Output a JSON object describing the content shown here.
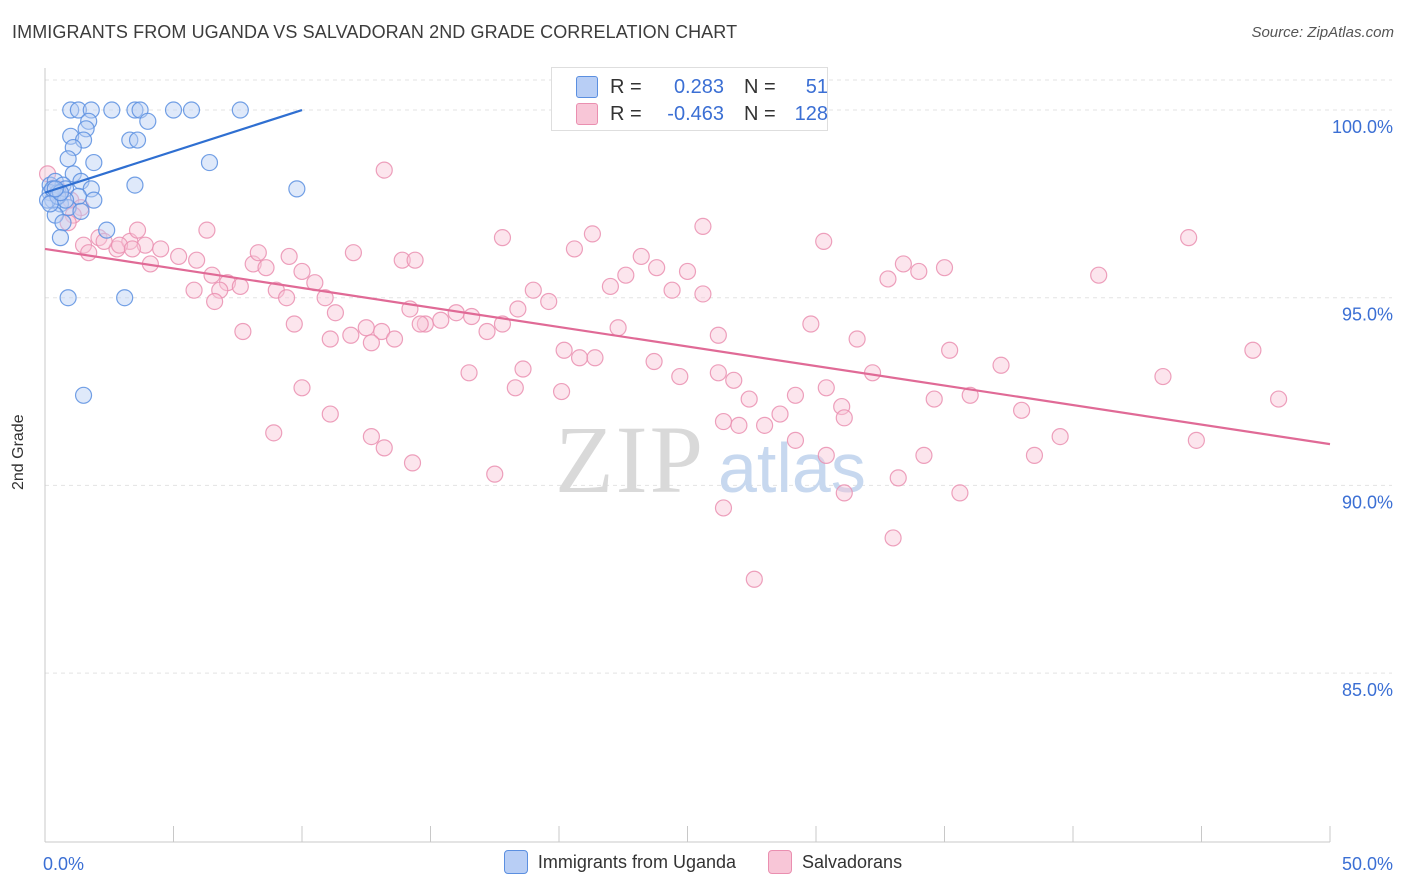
{
  "header": {
    "title": "IMMIGRANTS FROM UGANDA VS SALVADORAN 2ND GRADE CORRELATION CHART",
    "source": "Source: ZipAtlas.com"
  },
  "watermark": {
    "part1": "ZIP",
    "part2": "atlas"
  },
  "colors": {
    "blue": "#5b8fe0",
    "blue_fill": "#b8cef5",
    "blue_line": "#2f6fd1",
    "pink": "#ea8fb0",
    "pink_fill": "#f8c6d7",
    "pink_line": "#e06a96",
    "tick_label": "#3b6fd4",
    "grid": "#e3e3e3"
  },
  "legend_top": {
    "rows": [
      {
        "r_label": "R =",
        "r_value": "0.283",
        "n_label": "N =",
        "n_value": "51"
      },
      {
        "r_label": "R =",
        "r_value": "-0.463",
        "n_label": "N =",
        "n_value": "128"
      }
    ]
  },
  "chart_data": {
    "type": "scatter",
    "title": "IMMIGRANTS FROM UGANDA VS SALVADORAN 2ND GRADE CORRELATION CHART",
    "xlabel": "",
    "ylabel": "2nd Grade",
    "xlim": [
      0,
      50
    ],
    "ylim": [
      80.5,
      100.8
    ],
    "x_tick_labels": [
      "0.0%",
      "50.0%"
    ],
    "y_ticks": [
      85,
      90,
      95,
      100
    ],
    "y_tick_labels": [
      "85.0%",
      "90.0%",
      "95.0%",
      "100.0%"
    ],
    "grid": true,
    "legend_position": "bottom",
    "series": [
      {
        "name": "Immigrants from Uganda",
        "color": "blue",
        "trend": {
          "x": [
            0,
            10
          ],
          "y": [
            97.8,
            100.0
          ]
        },
        "points": [
          [
            1.0,
            100.0
          ],
          [
            1.3,
            100.0
          ],
          [
            1.8,
            100.0
          ],
          [
            2.6,
            100.0
          ],
          [
            3.5,
            100.0
          ],
          [
            3.7,
            100.0
          ],
          [
            5.0,
            100.0
          ],
          [
            5.7,
            100.0
          ],
          [
            7.6,
            100.0
          ],
          [
            1.7,
            99.7
          ],
          [
            4.0,
            99.7
          ],
          [
            1.6,
            99.5
          ],
          [
            1.0,
            99.3
          ],
          [
            1.5,
            99.2
          ],
          [
            3.3,
            99.2
          ],
          [
            3.6,
            99.2
          ],
          [
            1.1,
            99.0
          ],
          [
            0.9,
            98.7
          ],
          [
            1.9,
            98.6
          ],
          [
            6.4,
            98.6
          ],
          [
            1.1,
            98.3
          ],
          [
            1.4,
            98.1
          ],
          [
            3.5,
            98.0
          ],
          [
            9.8,
            97.9
          ],
          [
            0.2,
            98.0
          ],
          [
            0.4,
            98.1
          ],
          [
            0.7,
            98.0
          ],
          [
            0.2,
            97.8
          ],
          [
            0.5,
            97.8
          ],
          [
            0.8,
            97.9
          ],
          [
            1.8,
            97.9
          ],
          [
            0.3,
            97.6
          ],
          [
            1.3,
            97.7
          ],
          [
            1.9,
            97.6
          ],
          [
            0.6,
            97.5
          ],
          [
            0.9,
            97.4
          ],
          [
            1.4,
            97.3
          ],
          [
            0.1,
            97.6
          ],
          [
            0.4,
            97.2
          ],
          [
            0.7,
            97.0
          ],
          [
            2.4,
            96.8
          ],
          [
            0.6,
            96.6
          ],
          [
            0.9,
            95.0
          ],
          [
            3.1,
            95.0
          ],
          [
            1.5,
            92.4
          ],
          [
            0.3,
            97.9
          ],
          [
            0.5,
            97.7
          ],
          [
            0.8,
            97.6
          ],
          [
            0.2,
            97.5
          ],
          [
            0.6,
            97.8
          ],
          [
            0.4,
            97.9
          ]
        ]
      },
      {
        "name": "Salvadorans",
        "color": "pink",
        "trend": {
          "x": [
            0,
            50
          ],
          "y": [
            96.3,
            91.1
          ]
        },
        "points": [
          [
            0.1,
            98.3
          ],
          [
            0.5,
            97.9
          ],
          [
            1.0,
            97.6
          ],
          [
            1.4,
            97.4
          ],
          [
            1.1,
            97.2
          ],
          [
            0.9,
            97.0
          ],
          [
            2.1,
            96.6
          ],
          [
            1.5,
            96.4
          ],
          [
            2.8,
            96.3
          ],
          [
            3.3,
            96.5
          ],
          [
            3.9,
            96.4
          ],
          [
            4.5,
            96.3
          ],
          [
            5.2,
            96.1
          ],
          [
            5.9,
            96.0
          ],
          [
            4.1,
            95.9
          ],
          [
            3.6,
            96.8
          ],
          [
            1.7,
            96.2
          ],
          [
            2.3,
            96.5
          ],
          [
            2.9,
            96.4
          ],
          [
            3.4,
            96.3
          ],
          [
            6.3,
            96.8
          ],
          [
            6.5,
            95.6
          ],
          [
            7.1,
            95.4
          ],
          [
            6.8,
            95.2
          ],
          [
            7.6,
            95.3
          ],
          [
            8.1,
            95.9
          ],
          [
            8.6,
            95.8
          ],
          [
            9.0,
            95.2
          ],
          [
            9.4,
            95.0
          ],
          [
            10.0,
            95.7
          ],
          [
            10.5,
            95.4
          ],
          [
            10.9,
            95.0
          ],
          [
            11.3,
            94.6
          ],
          [
            11.9,
            94.0
          ],
          [
            12.5,
            94.2
          ],
          [
            13.1,
            94.1
          ],
          [
            13.6,
            93.9
          ],
          [
            14.2,
            94.7
          ],
          [
            14.8,
            94.3
          ],
          [
            15.4,
            94.4
          ],
          [
            16.0,
            94.6
          ],
          [
            16.6,
            94.5
          ],
          [
            17.2,
            94.1
          ],
          [
            17.8,
            94.3
          ],
          [
            18.4,
            94.7
          ],
          [
            19.0,
            95.2
          ],
          [
            19.6,
            94.9
          ],
          [
            20.2,
            93.6
          ],
          [
            20.8,
            93.4
          ],
          [
            21.4,
            93.4
          ],
          [
            22.0,
            95.3
          ],
          [
            22.6,
            95.6
          ],
          [
            23.2,
            96.1
          ],
          [
            23.8,
            95.8
          ],
          [
            24.4,
            95.2
          ],
          [
            25.0,
            95.7
          ],
          [
            25.6,
            95.1
          ],
          [
            26.2,
            93.0
          ],
          [
            26.8,
            92.8
          ],
          [
            27.4,
            92.3
          ],
          [
            28.0,
            91.6
          ],
          [
            28.6,
            91.9
          ],
          [
            29.2,
            92.4
          ],
          [
            29.8,
            94.3
          ],
          [
            30.4,
            92.6
          ],
          [
            31.0,
            92.1
          ],
          [
            31.6,
            93.9
          ],
          [
            32.2,
            93.0
          ],
          [
            32.8,
            95.5
          ],
          [
            33.4,
            95.9
          ],
          [
            34.0,
            95.7
          ],
          [
            34.6,
            92.3
          ],
          [
            35.2,
            93.6
          ],
          [
            36.0,
            92.4
          ],
          [
            37.2,
            93.2
          ],
          [
            38.0,
            92.0
          ],
          [
            38.5,
            90.8
          ],
          [
            39.5,
            91.3
          ],
          [
            41.0,
            95.6
          ],
          [
            43.5,
            92.9
          ],
          [
            44.8,
            91.2
          ],
          [
            47.0,
            93.6
          ],
          [
            48.0,
            92.3
          ],
          [
            44.5,
            96.6
          ],
          [
            35.0,
            95.8
          ],
          [
            30.3,
            96.5
          ],
          [
            25.6,
            96.9
          ],
          [
            21.3,
            96.7
          ],
          [
            20.6,
            96.3
          ],
          [
            17.8,
            96.6
          ],
          [
            13.9,
            96.0
          ],
          [
            12.0,
            96.2
          ],
          [
            9.5,
            96.1
          ],
          [
            8.3,
            96.2
          ],
          [
            6.6,
            94.9
          ],
          [
            5.8,
            95.2
          ],
          [
            7.7,
            94.1
          ],
          [
            9.7,
            94.3
          ],
          [
            11.1,
            93.9
          ],
          [
            12.7,
            93.8
          ],
          [
            14.6,
            94.3
          ],
          [
            16.5,
            93.0
          ],
          [
            18.3,
            92.6
          ],
          [
            18.6,
            93.1
          ],
          [
            20.1,
            92.5
          ],
          [
            22.3,
            94.2
          ],
          [
            23.7,
            93.3
          ],
          [
            24.7,
            92.9
          ],
          [
            26.2,
            94.0
          ],
          [
            26.4,
            91.7
          ],
          [
            27.0,
            91.6
          ],
          [
            29.2,
            91.2
          ],
          [
            30.4,
            90.8
          ],
          [
            31.1,
            91.8
          ],
          [
            33.0,
            88.6
          ],
          [
            33.2,
            90.2
          ],
          [
            26.4,
            89.4
          ],
          [
            27.6,
            87.5
          ],
          [
            35.6,
            89.8
          ],
          [
            31.1,
            89.8
          ],
          [
            34.2,
            90.8
          ],
          [
            17.5,
            90.3
          ],
          [
            14.3,
            90.6
          ],
          [
            13.2,
            91.0
          ],
          [
            12.7,
            91.3
          ],
          [
            11.1,
            91.9
          ],
          [
            8.9,
            91.4
          ],
          [
            10.0,
            92.6
          ],
          [
            13.2,
            98.4
          ],
          [
            14.4,
            96.0
          ]
        ]
      }
    ]
  },
  "bottom_legend": {
    "items": [
      {
        "label": "Immigrants from Uganda"
      },
      {
        "label": "Salvadorans"
      }
    ]
  }
}
